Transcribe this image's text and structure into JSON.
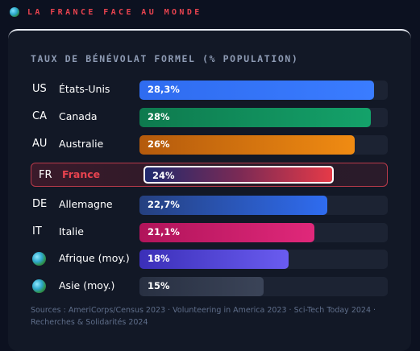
{
  "header": {
    "title": "LA FRANCE FACE AU MONDE",
    "icon": "globe-icon"
  },
  "chart_data": {
    "type": "bar",
    "orientation": "horizontal",
    "title": "TAUX DE BÉNÉVOLAT FORMEL (% POPULATION)",
    "xlim": [
      0,
      30
    ],
    "highlight": "FR",
    "rows": [
      {
        "code": "US",
        "name": "États-Unis",
        "value": 28.3,
        "label": "28,3%",
        "color_from": "#2f6cf0",
        "color_to": "#3a7cff"
      },
      {
        "code": "CA",
        "name": "Canada",
        "value": 28,
        "label": "28%",
        "color_from": "#0e7a4e",
        "color_to": "#14a26a"
      },
      {
        "code": "AU",
        "name": "Australie",
        "value": 26,
        "label": "26%",
        "color_from": "#b45a0c",
        "color_to": "#f08b12"
      },
      {
        "code": "FR",
        "name": "France",
        "value": 24,
        "label": "24%",
        "color_from": "#1f2a6e",
        "color_to": "#e53a48"
      },
      {
        "code": "DE",
        "name": "Allemagne",
        "value": 22.7,
        "label": "22,7%",
        "color_from": "#25407f",
        "color_to": "#2f6cf0"
      },
      {
        "code": "IT",
        "name": "Italie",
        "value": 21.1,
        "label": "21,1%",
        "color_from": "#b0145a",
        "color_to": "#e0287a"
      },
      {
        "code": "",
        "icon": "globe-icon",
        "name": "Afrique (moy.)",
        "value": 18,
        "label": "18%",
        "color_from": "#3b2fb8",
        "color_to": "#6a5cf0"
      },
      {
        "code": "",
        "icon": "globe-icon",
        "name": "Asie (moy.)",
        "value": 15,
        "label": "15%",
        "color_from": "#283042",
        "color_to": "#3b4458"
      }
    ]
  },
  "sources": "Sources : AmeriCorps/Census 2023 · Volunteering in America 2023 · Sci-Tech Today 2024 · Recherches & Solidarités 2024"
}
